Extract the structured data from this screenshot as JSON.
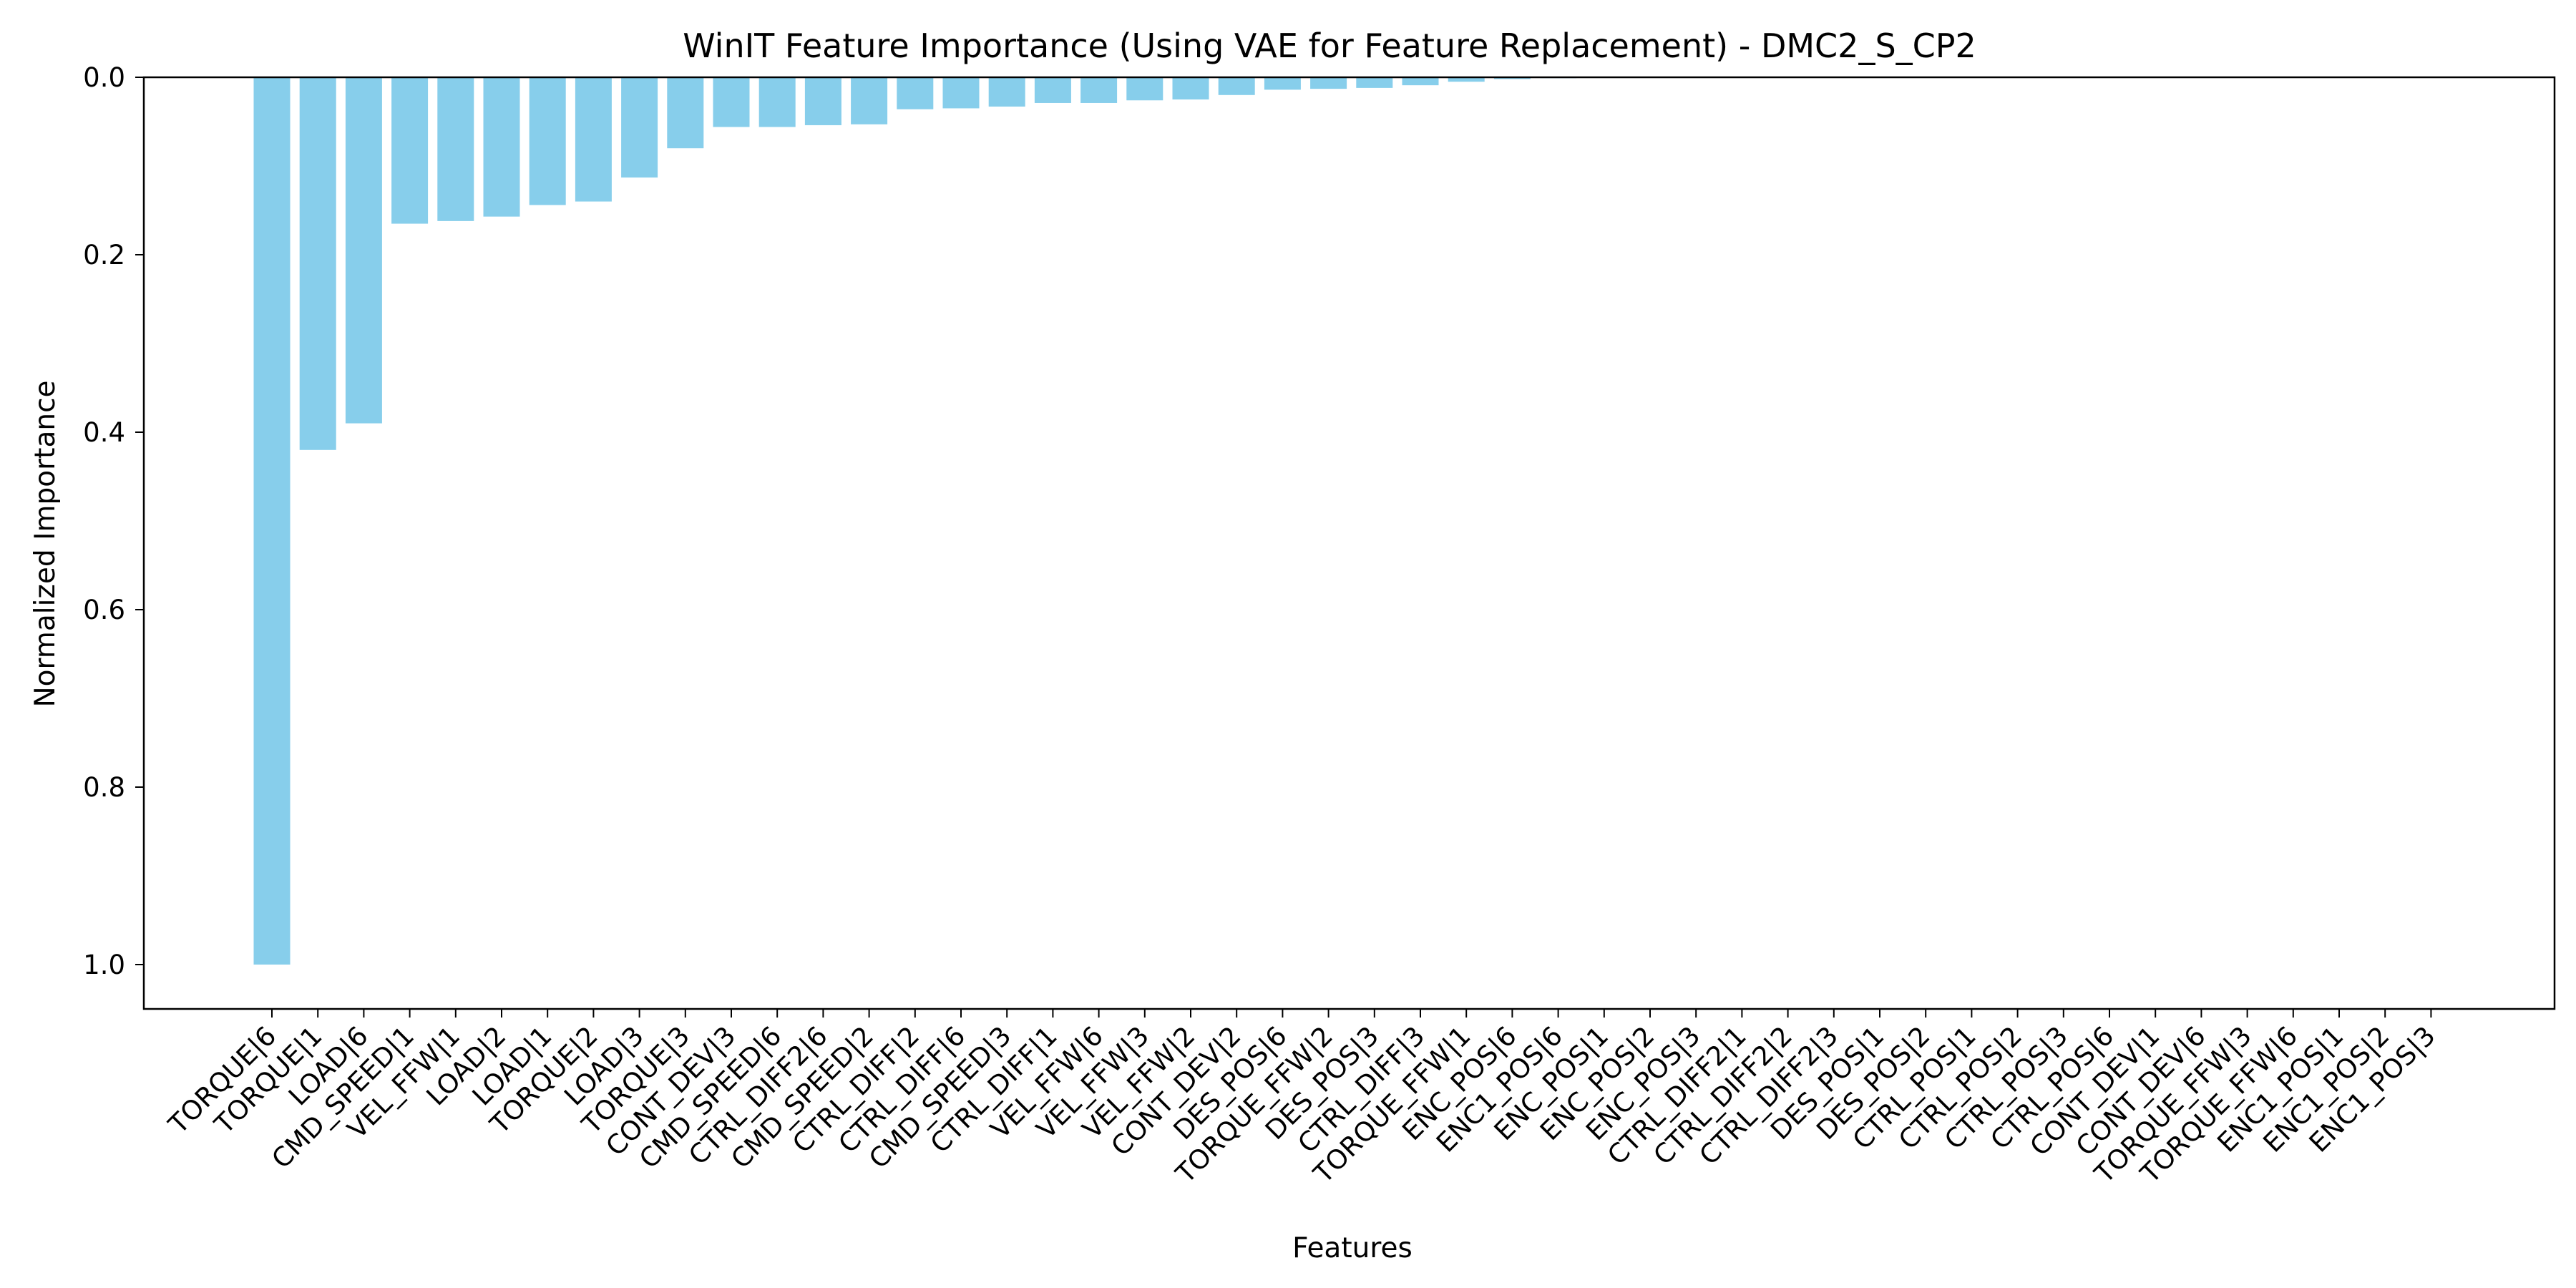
{
  "chart_data": {
    "type": "bar",
    "title": "WinIT Feature Importance (Using VAE for Feature Replacement) - DMC2_S_CP2",
    "xlabel": "Features",
    "ylabel": "Normalized Importance",
    "ylim": [
      0,
      1.05
    ],
    "y_axis_inverted": true,
    "y_ticks": [
      "0.0",
      "0.2",
      "0.4",
      "0.6",
      "0.8",
      "1.0"
    ],
    "bar_color": "#87CEEB",
    "grid": false,
    "categories": [
      "TORQUE|6",
      "TORQUE|1",
      "LOAD|6",
      "CMD_SPEED|1",
      "VEL_FFW|1",
      "LOAD|2",
      "LOAD|1",
      "TORQUE|2",
      "LOAD|3",
      "TORQUE|3",
      "CONT_DEV|3",
      "CMD_SPEED|6",
      "CTRL_DIFF2|6",
      "CMD_SPEED|2",
      "CTRL_DIFF|2",
      "CTRL_DIFF|6",
      "CMD_SPEED|3",
      "CTRL_DIFF|1",
      "VEL_FFW|6",
      "VEL_FFW|3",
      "VEL_FFW|2",
      "CONT_DEV|2",
      "DES_POS|6",
      "TORQUE_FFW|2",
      "DES_POS|3",
      "CTRL_DIFF|3",
      "TORQUE_FFW|1",
      "ENC_POS|6",
      "ENC1_POS|6",
      "ENC_POS|1",
      "ENC_POS|2",
      "ENC_POS|3",
      "CTRL_DIFF2|1",
      "CTRL_DIFF2|2",
      "CTRL_DIFF2|3",
      "DES_POS|1",
      "DES_POS|2",
      "CTRL_POS|1",
      "CTRL_POS|2",
      "CTRL_POS|3",
      "CTRL_POS|6",
      "CONT_DEV|1",
      "CONT_DEV|6",
      "TORQUE_FFW|3",
      "TORQUE_FFW|6",
      "ENC1_POS|1",
      "ENC1_POS|2",
      "ENC1_POS|3"
    ],
    "values": [
      1.0,
      0.42,
      0.39,
      0.165,
      0.162,
      0.157,
      0.144,
      0.14,
      0.113,
      0.08,
      0.056,
      0.056,
      0.054,
      0.053,
      0.036,
      0.035,
      0.033,
      0.029,
      0.029,
      0.026,
      0.025,
      0.02,
      0.014,
      0.013,
      0.012,
      0.009,
      0.005,
      0.002,
      0.001,
      0.0005,
      0.0003,
      0.0002,
      0.0001,
      0.0001,
      0.0001,
      0.0001,
      0.0001,
      0.0,
      0.0,
      0.0,
      0.0,
      0.0,
      0.0,
      0.0,
      0.0,
      0.0,
      0.0,
      0.0
    ]
  }
}
